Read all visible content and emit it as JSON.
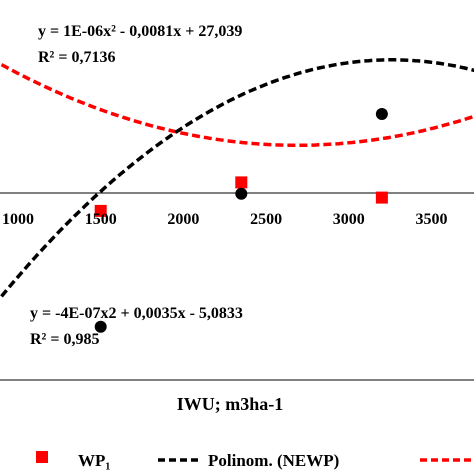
{
  "chart_data": {
    "type": "scatter",
    "xlabel": "IWU; m3ha-1",
    "x_ticks": [
      1000,
      1500,
      2000,
      2500,
      3000,
      3500
    ],
    "xlim": [
      900,
      3800
    ],
    "grid": false,
    "series": [
      {
        "name": "WP₁",
        "marker": "square",
        "color": "#ff0000",
        "x": [
          1500,
          2350,
          3200
        ],
        "y": [
          0.445,
          0.52,
          0.48
        ]
      },
      {
        "name": "NEWP",
        "marker": "circle",
        "color": "#000000",
        "x": [
          1500,
          2350,
          3200
        ],
        "y": [
          0.14,
          0.49,
          0.7
        ]
      }
    ],
    "trendlines": [
      {
        "series": "WP₁",
        "color": "#ff0000",
        "style": "dashed",
        "equation": "y = 1E-06x² - 0,0081x + 27,039",
        "r2_label": "R² = 0,7136"
      },
      {
        "series": "NEWP",
        "legend_label": "Polinom. (NEWP)",
        "color": "#000000",
        "style": "dashed",
        "equation": "y = -4E-07x2 + 0,0035x - 5,0833",
        "r2_label": "R² = 0,985"
      }
    ],
    "legend": {
      "position": "bottom",
      "entries": [
        {
          "label": "WP₁",
          "marker": "square",
          "color": "#ff0000"
        },
        {
          "label": "Polinom. (NEWP)",
          "marker": "dashed-line",
          "color": "#000000"
        },
        {
          "label": "",
          "marker": "dashed-line",
          "color": "#ff0000"
        }
      ]
    }
  }
}
